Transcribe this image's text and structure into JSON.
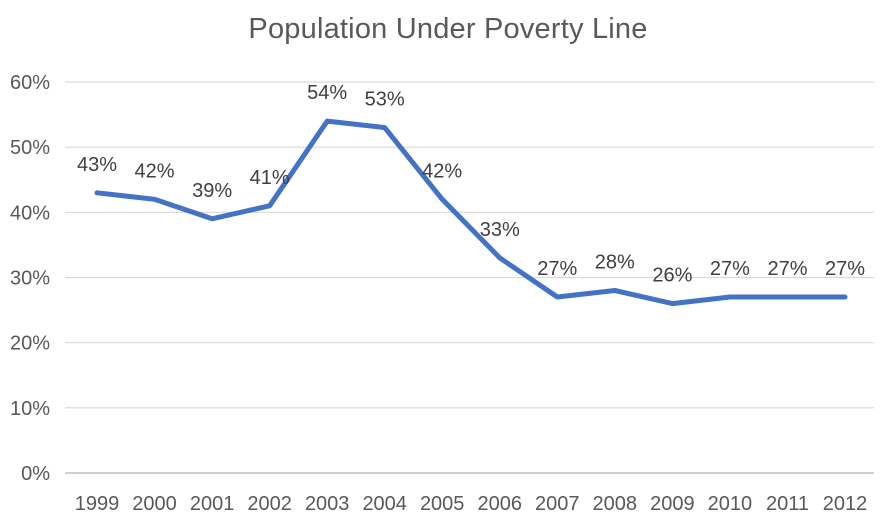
{
  "chart_data": {
    "type": "line",
    "title": "Population Under Poverty Line",
    "categories": [
      "1999",
      "2000",
      "2001",
      "2002",
      "2003",
      "2004",
      "2005",
      "2006",
      "2007",
      "2008",
      "2009",
      "2010",
      "2011",
      "2012"
    ],
    "values": [
      43,
      42,
      39,
      41,
      54,
      53,
      42,
      33,
      27,
      28,
      26,
      27,
      27,
      27
    ],
    "data_labels": [
      "43%",
      "42%",
      "39%",
      "41%",
      "54%",
      "53%",
      "42%",
      "33%",
      "27%",
      "28%",
      "26%",
      "27%",
      "27%",
      "27%"
    ],
    "xlabel": "",
    "ylabel": "",
    "ylim": [
      0,
      60
    ],
    "ytick_step": 10,
    "ytick_labels": [
      "0%",
      "10%",
      "20%",
      "30%",
      "40%",
      "50%",
      "60%"
    ],
    "grid": true,
    "legend": false,
    "colors": {
      "line": "#4472C4",
      "gridline": "#D9D9D9",
      "axis_line": "#BFBFBF",
      "title": "#595959",
      "tick_label": "#595959",
      "data_label": "#404040",
      "background": "#FFFFFF"
    }
  }
}
